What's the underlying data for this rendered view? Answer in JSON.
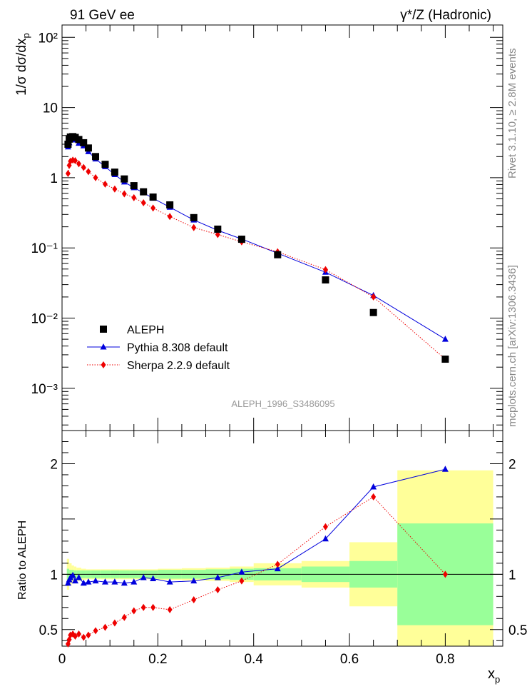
{
  "header": {
    "left": "91 GeV ee",
    "right": "γ*/Z (Hadronic)"
  },
  "side_labels": {
    "rivet": "Rivet 3.1.10, ≥ 2.8M events",
    "mcplots": "mcplots.cern.ch [arXiv:1306.3436]"
  },
  "analysis_id": "ALEPH_1996_S3486095",
  "chart_data": [
    {
      "type": "scatter",
      "panel": "main",
      "ylabel": "1/σ dσ/dx_p",
      "yscale": "log",
      "ylim": [
        0.00025,
        150
      ],
      "xlim": [
        0,
        0.92
      ],
      "yticks": [
        {
          "v": 0.001,
          "label": "10⁻³"
        },
        {
          "v": 0.01,
          "label": "10⁻²"
        },
        {
          "v": 0.1,
          "label": "10⁻¹"
        },
        {
          "v": 1,
          "label": "1"
        },
        {
          "v": 10,
          "label": "10"
        },
        {
          "v": 100,
          "label": "10²"
        }
      ],
      "legend_position": "bottom-left",
      "series": [
        {
          "name": "ALEPH",
          "color": "#000000",
          "marker": "square",
          "x": [
            0.0125,
            0.015,
            0.0175,
            0.0225,
            0.0275,
            0.035,
            0.045,
            0.055,
            0.07,
            0.09,
            0.11,
            0.13,
            0.15,
            0.17,
            0.19,
            0.225,
            0.275,
            0.325,
            0.375,
            0.45,
            0.55,
            0.65,
            0.8
          ],
          "y": [
            3.0,
            3.55,
            3.8,
            3.85,
            3.75,
            3.5,
            3.15,
            2.65,
            2.0,
            1.55,
            1.2,
            0.96,
            0.77,
            0.63,
            0.53,
            0.41,
            0.27,
            0.185,
            0.133,
            0.08,
            0.035,
            0.012,
            0.0026
          ]
        },
        {
          "name": "Pythia 8.308 default",
          "color": "#0000dd",
          "marker": "triangle",
          "line": "solid",
          "x": [
            0.0125,
            0.015,
            0.0175,
            0.0225,
            0.0275,
            0.035,
            0.045,
            0.055,
            0.07,
            0.09,
            0.11,
            0.13,
            0.15,
            0.17,
            0.19,
            0.225,
            0.275,
            0.325,
            0.375,
            0.45,
            0.55,
            0.65,
            0.8
          ],
          "y": [
            2.75,
            3.15,
            3.55,
            3.65,
            3.45,
            3.1,
            2.85,
            2.35,
            1.85,
            1.44,
            1.11,
            0.87,
            0.72,
            0.61,
            0.51,
            0.38,
            0.25,
            0.178,
            0.134,
            0.084,
            0.045,
            0.021,
            0.005
          ]
        },
        {
          "name": "Sherpa 2.2.9 default",
          "color": "#ee0000",
          "marker": "diamond",
          "line": "dotted",
          "x": [
            0.0125,
            0.015,
            0.0175,
            0.0225,
            0.0275,
            0.035,
            0.045,
            0.055,
            0.07,
            0.09,
            0.11,
            0.13,
            0.15,
            0.17,
            0.19,
            0.225,
            0.275,
            0.325,
            0.375,
            0.45,
            0.55,
            0.65,
            0.8
          ],
          "y": [
            1.15,
            1.5,
            1.72,
            1.78,
            1.75,
            1.58,
            1.4,
            1.22,
            1.0,
            0.81,
            0.69,
            0.59,
            0.52,
            0.44,
            0.37,
            0.28,
            0.195,
            0.155,
            0.122,
            0.088,
            0.049,
            0.02,
            0.0026
          ]
        }
      ]
    },
    {
      "type": "line",
      "panel": "ratio",
      "ylabel": "Ratio to ALEPH",
      "xlabel": "x_p",
      "ylim": [
        0.35,
        2.3
      ],
      "xlim": [
        0,
        0.92
      ],
      "yticks": [
        {
          "v": 0.5,
          "label": "0.5"
        },
        {
          "v": 1,
          "label": "1"
        },
        {
          "v": 2,
          "label": "2"
        }
      ],
      "xticks": [
        {
          "v": 0,
          "label": "0"
        },
        {
          "v": 0.2,
          "label": "0.2"
        },
        {
          "v": 0.4,
          "label": "0.4"
        },
        {
          "v": 0.6,
          "label": "0.6"
        },
        {
          "v": 0.8,
          "label": "0.8"
        }
      ],
      "bands": [
        {
          "x0": 0.01,
          "x1": 0.015,
          "stat": 0.05,
          "total": 0.14
        },
        {
          "x0": 0.015,
          "x1": 0.02,
          "stat": 0.04,
          "total": 0.1
        },
        {
          "x0": 0.02,
          "x1": 0.025,
          "stat": 0.04,
          "total": 0.08
        },
        {
          "x0": 0.025,
          "x1": 0.03,
          "stat": 0.035,
          "total": 0.07
        },
        {
          "x0": 0.03,
          "x1": 0.04,
          "stat": 0.035,
          "total": 0.06
        },
        {
          "x0": 0.04,
          "x1": 0.05,
          "stat": 0.035,
          "total": 0.05
        },
        {
          "x0": 0.05,
          "x1": 0.06,
          "stat": 0.035,
          "total": 0.045
        },
        {
          "x0": 0.06,
          "x1": 0.08,
          "stat": 0.035,
          "total": 0.045
        },
        {
          "x0": 0.08,
          "x1": 0.1,
          "stat": 0.035,
          "total": 0.045
        },
        {
          "x0": 0.1,
          "x1": 0.12,
          "stat": 0.035,
          "total": 0.045
        },
        {
          "x0": 0.12,
          "x1": 0.14,
          "stat": 0.035,
          "total": 0.045
        },
        {
          "x0": 0.14,
          "x1": 0.16,
          "stat": 0.035,
          "total": 0.045
        },
        {
          "x0": 0.16,
          "x1": 0.18,
          "stat": 0.035,
          "total": 0.045
        },
        {
          "x0": 0.18,
          "x1": 0.2,
          "stat": 0.035,
          "total": 0.045
        },
        {
          "x0": 0.2,
          "x1": 0.25,
          "stat": 0.04,
          "total": 0.05
        },
        {
          "x0": 0.25,
          "x1": 0.3,
          "stat": 0.04,
          "total": 0.055
        },
        {
          "x0": 0.3,
          "x1": 0.35,
          "stat": 0.045,
          "total": 0.06
        },
        {
          "x0": 0.35,
          "x1": 0.4,
          "stat": 0.05,
          "total": 0.07
        },
        {
          "x0": 0.4,
          "x1": 0.5,
          "stat": 0.055,
          "total": 0.1
        },
        {
          "x0": 0.5,
          "x1": 0.6,
          "stat": 0.07,
          "total": 0.12
        },
        {
          "x0": 0.6,
          "x1": 0.7,
          "stat": 0.12,
          "total": 0.29
        },
        {
          "x0": 0.7,
          "x1": 0.9,
          "stat": 0.46,
          "total": 0.94
        }
      ],
      "series": [
        {
          "name": "Pythia 8.308 default",
          "color": "#0000dd",
          "marker": "triangle",
          "line": "solid",
          "x": [
            0.0125,
            0.015,
            0.0175,
            0.0225,
            0.0275,
            0.035,
            0.045,
            0.055,
            0.07,
            0.09,
            0.11,
            0.13,
            0.15,
            0.17,
            0.19,
            0.225,
            0.275,
            0.325,
            0.375,
            0.45,
            0.55,
            0.65,
            0.8
          ],
          "y": [
            0.92,
            0.95,
            0.97,
            0.99,
            0.94,
            0.97,
            0.92,
            0.93,
            0.94,
            0.93,
            0.93,
            0.92,
            0.93,
            0.97,
            0.96,
            0.93,
            0.94,
            0.97,
            1.02,
            1.05,
            1.32,
            1.79,
            1.95
          ]
        },
        {
          "name": "Sherpa 2.2.9 default",
          "color": "#ee0000",
          "marker": "diamond",
          "line": "dotted",
          "x": [
            0.0125,
            0.015,
            0.0175,
            0.0225,
            0.0275,
            0.035,
            0.045,
            0.055,
            0.07,
            0.09,
            0.11,
            0.13,
            0.15,
            0.17,
            0.19,
            0.225,
            0.275,
            0.325,
            0.375,
            0.45,
            0.55,
            0.65,
            0.8
          ],
          "y": [
            0.37,
            0.41,
            0.45,
            0.46,
            0.44,
            0.46,
            0.43,
            0.45,
            0.49,
            0.52,
            0.56,
            0.61,
            0.67,
            0.7,
            0.7,
            0.68,
            0.77,
            0.86,
            0.94,
            1.09,
            1.43,
            1.7,
            1.0
          ]
        }
      ]
    }
  ]
}
